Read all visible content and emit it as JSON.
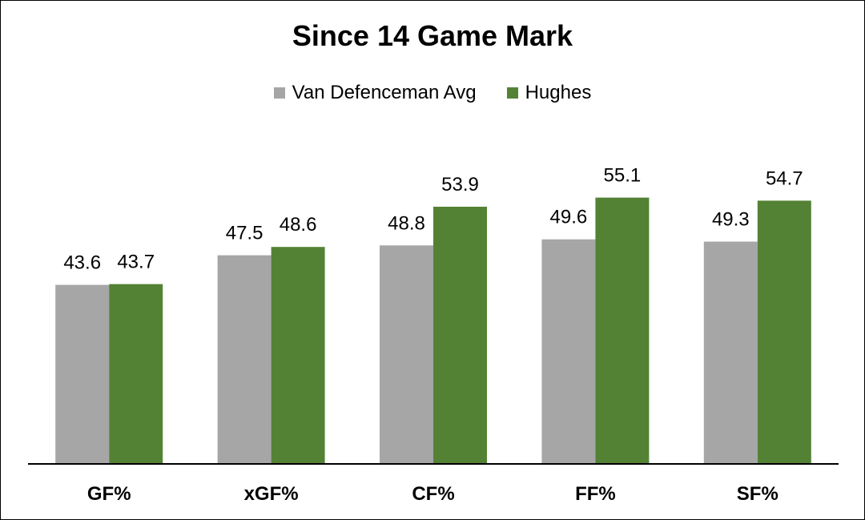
{
  "chart_data": {
    "type": "bar",
    "title": "Since 14 Game Mark",
    "categories": [
      "GF%",
      "xGF%",
      "CF%",
      "FF%",
      "SF%"
    ],
    "series": [
      {
        "name": "Van Defenceman Avg",
        "color": "#a6a6a6",
        "values": [
          43.6,
          47.5,
          48.8,
          49.6,
          49.3
        ]
      },
      {
        "name": "Hughes",
        "color": "#548235",
        "values": [
          43.7,
          48.6,
          53.9,
          55.1,
          54.7
        ]
      }
    ],
    "xlabel": "",
    "ylabel": "",
    "ylim": [
      20,
      60
    ],
    "grid": false,
    "legend_position": "top",
    "data_labels": true
  }
}
